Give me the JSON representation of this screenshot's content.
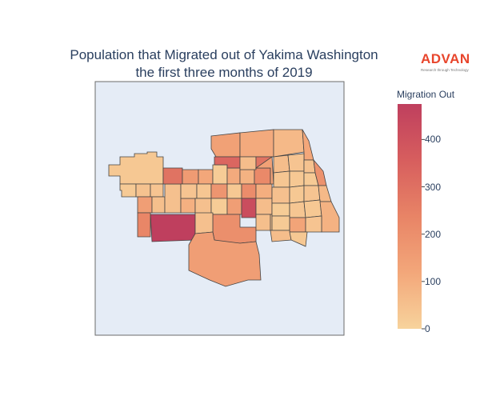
{
  "title": {
    "line1": "Population that Migrated out of Yakima Washington",
    "line2": "the first three months of 2019"
  },
  "logo": {
    "name": "ADVAN",
    "tagline": "Research through Technology"
  },
  "colors": {
    "panel_background": "#e5ecf6",
    "panel_border": "#6b6b6b",
    "region_outline": "#444444"
  },
  "colorbar": {
    "title": "Migration Out",
    "min": 0,
    "max": 475,
    "ticks": [
      "0",
      "100",
      "200",
      "300",
      "400"
    ],
    "colorscale": [
      "#f7d39c",
      "#f3a77a",
      "#e88466",
      "#d75e5e",
      "#bf3f5e"
    ]
  },
  "map_data": {
    "type": "choropleth",
    "variable": "Migration Out",
    "regions": [
      {
        "id": "w-far-west",
        "value": 30
      },
      {
        "id": "w-far-west-2",
        "value": 25
      },
      {
        "id": "w-mid-1",
        "value": 45
      },
      {
        "id": "w-mid-2",
        "value": 40
      },
      {
        "id": "w-row3-a",
        "value": 150
      },
      {
        "id": "w-row3-b",
        "value": 55
      },
      {
        "id": "w-row3-c",
        "value": 50
      },
      {
        "id": "w-row3-d",
        "value": 95
      },
      {
        "id": "c-row1-a",
        "value": 290
      },
      {
        "id": "c-row1-b",
        "value": 160
      },
      {
        "id": "c-row1-c",
        "value": 120
      },
      {
        "id": "c-row1-d",
        "value": 20
      },
      {
        "id": "c-row1-e",
        "value": 110
      },
      {
        "id": "c-row1-f",
        "value": 90
      },
      {
        "id": "c-row2-a",
        "value": 40
      },
      {
        "id": "c-row2-b",
        "value": 35
      },
      {
        "id": "c-row2-c",
        "value": 180
      },
      {
        "id": "c-row2-d",
        "value": 30
      },
      {
        "id": "c-row2-e",
        "value": 210
      },
      {
        "id": "c-row2-f",
        "value": 100
      },
      {
        "id": "c-row2-g",
        "value": 220
      },
      {
        "id": "c-row2-h",
        "value": 50
      },
      {
        "id": "c-row3-a",
        "value": 20
      },
      {
        "id": "c-row3-b",
        "value": 150
      },
      {
        "id": "c-row3-c",
        "value": 420
      },
      {
        "id": "c-row3-d",
        "value": 60
      },
      {
        "id": "c-row3-e",
        "value": 200
      },
      {
        "id": "c-row3-f",
        "value": 55
      },
      {
        "id": "c-row3-g",
        "value": 45
      },
      {
        "id": "n-top-1",
        "value": 140
      },
      {
        "id": "n-top-2",
        "value": 110
      },
      {
        "id": "n-top-3",
        "value": 70
      },
      {
        "id": "n-top-4",
        "value": 120
      },
      {
        "id": "n-mid-1",
        "value": 330
      },
      {
        "id": "n-mid-2",
        "value": 60
      },
      {
        "id": "n-mid-3",
        "value": 290
      },
      {
        "id": "n-mid-4",
        "value": 140
      },
      {
        "id": "e-1",
        "value": 60
      },
      {
        "id": "e-2",
        "value": 40
      },
      {
        "id": "e-3",
        "value": 35
      },
      {
        "id": "e-4",
        "value": 30
      },
      {
        "id": "e-5",
        "value": 45
      },
      {
        "id": "e-6",
        "value": 25
      },
      {
        "id": "e-7",
        "value": 50
      },
      {
        "id": "e-8",
        "value": 30
      },
      {
        "id": "e-9",
        "value": 20
      },
      {
        "id": "e-10",
        "value": 190
      },
      {
        "id": "e-11",
        "value": 40
      },
      {
        "id": "e-12",
        "value": 35
      },
      {
        "id": "e-13",
        "value": 70
      },
      {
        "id": "e-14",
        "value": 30
      },
      {
        "id": "e-15",
        "value": 90
      },
      {
        "id": "s-1",
        "value": 475
      },
      {
        "id": "s-2",
        "value": 50
      },
      {
        "id": "s-3",
        "value": 230
      },
      {
        "id": "s-4",
        "value": 130
      },
      {
        "id": "s-5",
        "value": 40
      },
      {
        "id": "s-6",
        "value": 25
      },
      {
        "id": "s-7",
        "value": 60
      },
      {
        "id": "s-8",
        "value": 30
      },
      {
        "id": "s-big",
        "value": 150
      }
    ]
  }
}
